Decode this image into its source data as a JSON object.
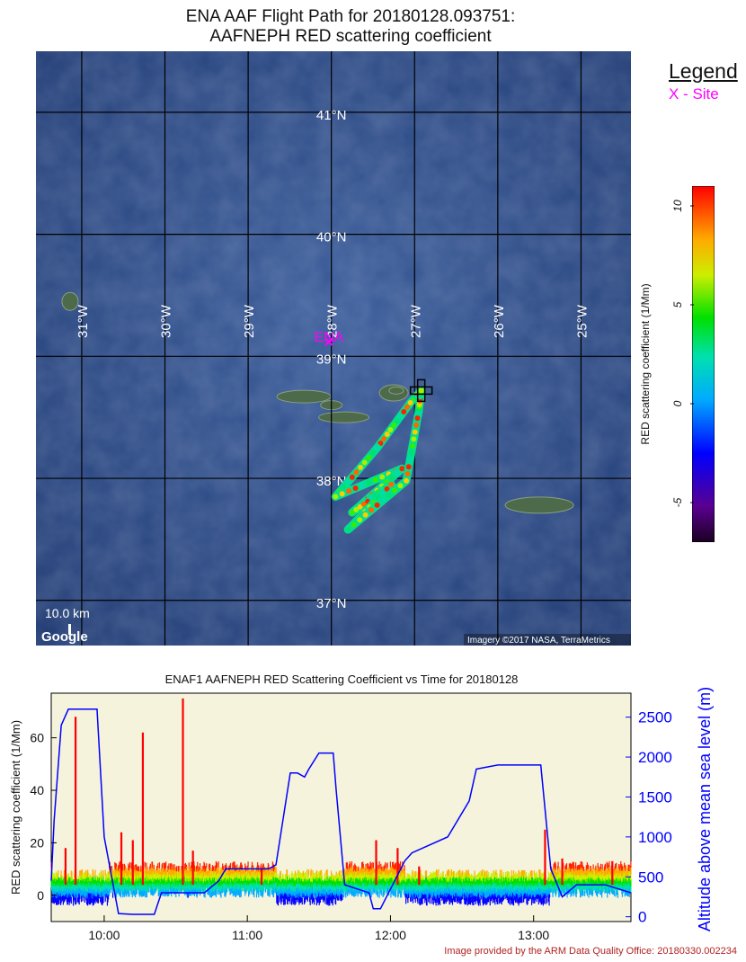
{
  "title_line1": "ENA AAF Flight Path for 20180128.093751:",
  "title_line2": "AAFNEPH RED scattering coefficient",
  "legend": {
    "title": "Legend",
    "site": "X - Site"
  },
  "site": {
    "label": "ENA",
    "lon": -28.03,
    "lat": 39.09
  },
  "map": {
    "lon_range": [
      -31.55,
      -24.4
    ],
    "lat_range": [
      36.63,
      41.5
    ],
    "lon_ticks": [
      {
        "value": -31,
        "label": "31°W"
      },
      {
        "value": -30,
        "label": "30°W"
      },
      {
        "value": -29,
        "label": "29°W"
      },
      {
        "value": -28,
        "label": "28°W"
      },
      {
        "value": -27,
        "label": "27°W"
      },
      {
        "value": -26,
        "label": "26°W"
      },
      {
        "value": -25,
        "label": "25°W"
      }
    ],
    "lat_ticks": [
      {
        "value": 41,
        "label": "41°N"
      },
      {
        "value": 40,
        "label": "40°N"
      },
      {
        "value": 39,
        "label": "39°N"
      },
      {
        "value": 38,
        "label": "38°N"
      },
      {
        "value": 37,
        "label": "37°N"
      }
    ],
    "scale_label": "10.0 km",
    "google_label": "Google",
    "attribution": "Imagery ©2017 NASA, TerraMetrics",
    "ocean_color": "#2c4a86",
    "island_color": "#4d6a4a"
  },
  "flight_path": [
    {
      "lon": -26.92,
      "lat": 38.72
    },
    {
      "lon": -27.05,
      "lat": 38.62
    },
    {
      "lon": -27.45,
      "lat": 38.25
    },
    {
      "lon": -27.95,
      "lat": 37.85
    },
    {
      "lon": -27.15,
      "lat": 38.08
    },
    {
      "lon": -27.75,
      "lat": 37.72
    },
    {
      "lon": -27.28,
      "lat": 37.95
    },
    {
      "lon": -27.8,
      "lat": 37.58
    },
    {
      "lon": -27.1,
      "lat": 37.98
    },
    {
      "lon": -26.95,
      "lat": 38.55
    },
    {
      "lon": -26.92,
      "lat": 38.72
    }
  ],
  "colorbar": {
    "label": "RED scattering coefficient  (1/Mm)",
    "range": [
      -7,
      11
    ],
    "ticks": [
      {
        "value": 10,
        "label": "10"
      },
      {
        "value": 5,
        "label": "5"
      },
      {
        "value": 0,
        "label": "0"
      },
      {
        "value": -5,
        "label": "-5"
      }
    ]
  },
  "chart_data": {
    "type": "line",
    "title": "ENAF1 AAFNEPH RED Scattering Coefficient vs Time for 20180128",
    "xlabel": "",
    "ylabel": "RED scattering coefficient (1/Mm)",
    "y2label": "Altitude above mean sea level (m)",
    "x_ticks": [
      "10:00",
      "11:00",
      "12:00",
      "13:00"
    ],
    "xlim_hours": [
      9.63,
      13.68
    ],
    "ylim": [
      -10,
      77
    ],
    "y_ticks": [
      0,
      20,
      40,
      60
    ],
    "y2lim": [
      -60,
      2800
    ],
    "y2_ticks": [
      0,
      500,
      1000,
      1500,
      2000,
      2500
    ],
    "background": "#f5f3dc",
    "series": [
      {
        "name": "Altitude",
        "color": "#0000ff",
        "x_hours": [
          9.63,
          9.65,
          9.7,
          9.75,
          9.82,
          9.85,
          9.95,
          10.0,
          10.1,
          10.2,
          10.35,
          10.4,
          10.7,
          10.8,
          10.85,
          11.15,
          11.2,
          11.3,
          11.35,
          11.4,
          11.43,
          11.5,
          11.55,
          11.6,
          11.62,
          11.68,
          11.85,
          11.88,
          11.93,
          12.1,
          12.15,
          12.4,
          12.55,
          12.6,
          12.75,
          12.85,
          13.05,
          13.12,
          13.2,
          13.3,
          13.5,
          13.68
        ],
        "y_m": [
          450,
          1200,
          2400,
          2600,
          2600,
          2600,
          2600,
          1000,
          40,
          30,
          30,
          300,
          300,
          450,
          600,
          600,
          650,
          1800,
          1800,
          1750,
          1850,
          2050,
          2050,
          2050,
          1600,
          400,
          300,
          100,
          100,
          700,
          800,
          1000,
          1450,
          1850,
          1900,
          1900,
          1900,
          600,
          250,
          400,
          400,
          300
        ]
      },
      {
        "name": "RED scattering coefficient",
        "color": "#ff0000",
        "spikes": [
          {
            "x_hours": 9.8,
            "y": 68
          },
          {
            "x_hours": 9.73,
            "y": 18
          },
          {
            "x_hours": 10.12,
            "y": 24
          },
          {
            "x_hours": 10.27,
            "y": 62
          },
          {
            "x_hours": 10.2,
            "y": 21
          },
          {
            "x_hours": 10.55,
            "y": 75
          },
          {
            "x_hours": 10.62,
            "y": 17
          },
          {
            "x_hours": 11.1,
            "y": 10
          },
          {
            "x_hours": 11.9,
            "y": 21
          },
          {
            "x_hours": 12.05,
            "y": 18
          },
          {
            "x_hours": 12.2,
            "y": 11
          },
          {
            "x_hours": 13.08,
            "y": 25
          },
          {
            "x_hours": 13.2,
            "y": 14
          },
          {
            "x_hours": 13.55,
            "y": 13
          }
        ]
      }
    ]
  },
  "credit": "Image provided by the ARM Data Quality Office: 20180330.002234"
}
